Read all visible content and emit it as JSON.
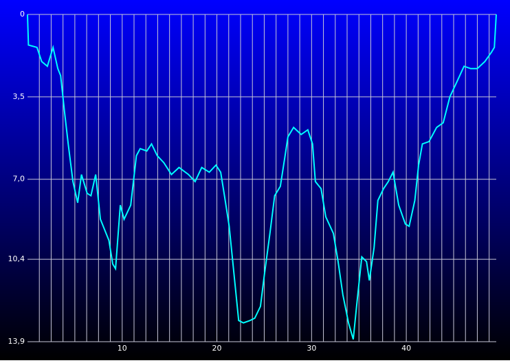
{
  "chart_data": {
    "type": "line",
    "x": [
      0,
      0.1,
      1.0,
      1.5,
      2.1,
      2.7,
      3.2,
      3.5,
      3.9,
      4.3,
      4.8,
      5.3,
      5.7,
      6.3,
      6.7,
      7.2,
      7.7,
      8.3,
      8.6,
      9.0,
      9.3,
      9.8,
      10.2,
      10.9,
      11.5,
      11.9,
      12.6,
      13.1,
      13.7,
      14.4,
      15.2,
      16.0,
      17.0,
      17.7,
      18.4,
      19.2,
      19.9,
      20.4,
      20.8,
      21.3,
      21.9,
      22.3,
      22.8,
      23.5,
      24.0,
      24.6,
      25.0,
      25.6,
      26.1,
      26.7,
      27.2,
      27.5,
      28.1,
      28.9,
      29.6,
      30.1,
      30.4,
      31.0,
      31.5,
      32.3,
      32.8,
      33.3,
      33.9,
      34.4,
      34.8,
      35.3,
      35.8,
      36.1,
      36.6,
      37.0,
      37.6,
      38.1,
      38.6,
      39.2,
      39.9,
      40.3,
      40.9,
      41.3,
      41.7,
      42.4,
      43.2,
      43.9,
      44.6,
      45.3,
      46.1,
      46.8,
      47.5,
      48.3,
      49.0,
      49.3,
      49.5
    ],
    "series": [
      {
        "color": "#00ffff",
        "values": [
          0,
          1.3,
          1.4,
          2.0,
          2.2,
          1.4,
          2.3,
          2.6,
          4.1,
          5.5,
          7.1,
          8.0,
          6.8,
          7.6,
          7.7,
          6.8,
          8.7,
          9.3,
          9.6,
          10.6,
          10.8,
          8.1,
          8.7,
          8.1,
          6.0,
          5.7,
          5.8,
          5.5,
          6.0,
          6.3,
          6.8,
          6.5,
          6.8,
          7.1,
          6.5,
          6.7,
          6.4,
          6.7,
          7.7,
          9.0,
          11.4,
          13.0,
          13.1,
          13.0,
          12.9,
          12.4,
          11.1,
          9.3,
          7.7,
          7.3,
          6.0,
          5.2,
          4.8,
          5.1,
          4.9,
          5.5,
          7.1,
          7.4,
          8.6,
          9.3,
          10.5,
          11.9,
          13.1,
          13.8,
          12.2,
          10.3,
          10.5,
          11.3,
          9.9,
          7.9,
          7.4,
          7.1,
          6.7,
          8.1,
          8.9,
          9.0,
          7.9,
          6.4,
          5.5,
          5.4,
          4.8,
          4.6,
          3.5,
          2.9,
          2.2,
          2.3,
          2.3,
          2.0,
          1.6,
          1.4,
          0
        ]
      }
    ],
    "xlim": [
      0,
      49.5
    ],
    "xticks": [
      10,
      20,
      30,
      40
    ],
    "x_gridlines": [
      1.25,
      2.5,
      3.75,
      5,
      6.25,
      7.5,
      8.75,
      10,
      11.25,
      12.5,
      13.75,
      15,
      16.25,
      17.5,
      18.75,
      20,
      21.25,
      22.5,
      23.75,
      25,
      26.25,
      27.5,
      28.75,
      30,
      31.25,
      32.5,
      33.75,
      35,
      36.25,
      37.5,
      38.75,
      40,
      41.25,
      42.5,
      43.75,
      45,
      46.25,
      47.5,
      48.75
    ],
    "ylim": [
      0,
      13.9
    ],
    "y_inverted": true,
    "yticks": [
      0,
      {
        "value": 3.5,
        "label": "3,5"
      },
      {
        "value": 7.0,
        "label": "7,0"
      },
      {
        "value": 10.4,
        "label": "10,4"
      },
      {
        "value": 13.9,
        "label": "13,9"
      }
    ],
    "grid": true
  }
}
